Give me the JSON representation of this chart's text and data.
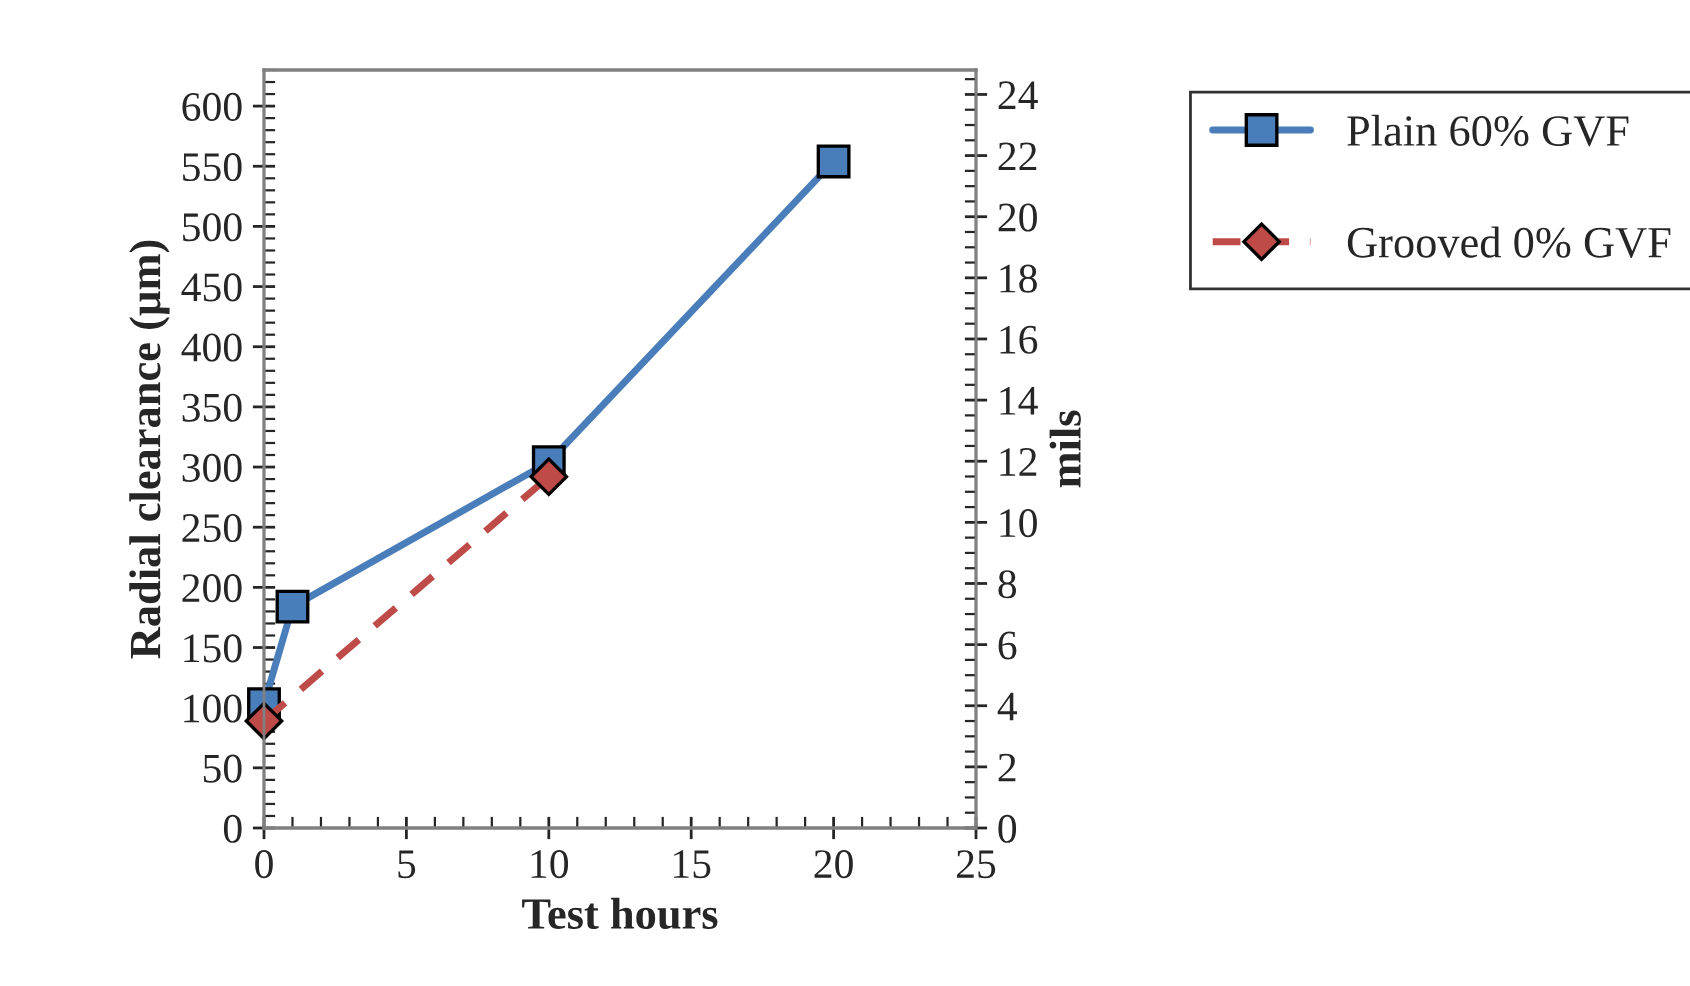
{
  "chart_data": {
    "type": "line",
    "xlabel": "Test hours",
    "ylabel": "Radial clearance (µm)",
    "y2label": "mils",
    "xlim": [
      0,
      25
    ],
    "xticks": [
      0,
      5,
      10,
      15,
      20,
      25
    ],
    "ylim": [
      0,
      630
    ],
    "yticks": [
      0,
      50,
      100,
      150,
      200,
      250,
      300,
      350,
      400,
      450,
      500,
      550,
      600
    ],
    "y2lim": [
      0,
      24.8
    ],
    "y2ticks": [
      0,
      2,
      4,
      6,
      8,
      10,
      12,
      14,
      16,
      18,
      20,
      22,
      24
    ],
    "legend": "top right",
    "grid": false,
    "series": [
      {
        "name": "Plain 60% GVF",
        "color": "#4a7ebb",
        "x": [
          0,
          1,
          10,
          20
        ],
        "values": [
          103,
          184,
          304,
          554
        ],
        "marker": "square",
        "line_style": "solid"
      },
      {
        "name": "Grooved 0% GVF",
        "color": "#be4b48",
        "x": [
          0,
          10
        ],
        "values": [
          89,
          292
        ],
        "marker": "diamond",
        "line_style": "dashed"
      }
    ]
  }
}
